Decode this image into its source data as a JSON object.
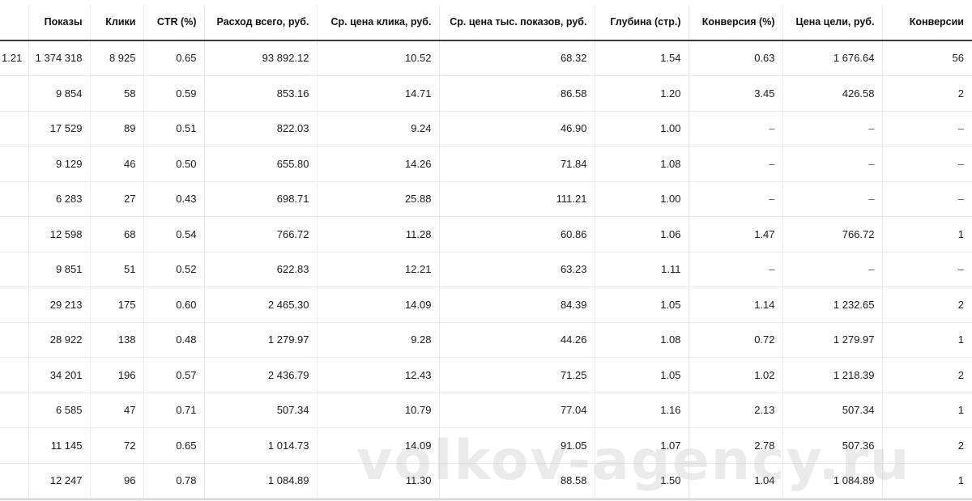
{
  "totals": [
    "1.21",
    "1 374 318",
    "8 925",
    "0.65",
    "93 892.12",
    "10.52",
    "68.32",
    "1.54",
    "0.63",
    "1 676.64",
    "56"
  ],
  "columns": [
    "",
    "Показы",
    "Клики",
    "CTR (%)",
    "Расход всего, руб.",
    "Ср. цена клика, руб.",
    "Ср. цена тыс. показов, руб.",
    "Глубина (стр.)",
    "Конверсия (%)",
    "Цена цели, руб.",
    "Конверсии"
  ],
  "rows": [
    [
      "",
      "9 854",
      "58",
      "0.59",
      "853.16",
      "14.71",
      "86.58",
      "1.20",
      "3.45",
      "426.58",
      "2"
    ],
    [
      "",
      "17 529",
      "89",
      "0.51",
      "822.03",
      "9.24",
      "46.90",
      "1.00",
      "–",
      "–",
      "–"
    ],
    [
      "",
      "9 129",
      "46",
      "0.50",
      "655.80",
      "14.26",
      "71.84",
      "1.08",
      "–",
      "–",
      "–"
    ],
    [
      "",
      "6 283",
      "27",
      "0.43",
      "698.71",
      "25.88",
      "111.21",
      "1.00",
      "–",
      "–",
      "–"
    ],
    [
      "",
      "12 598",
      "68",
      "0.54",
      "766.72",
      "11.28",
      "60.86",
      "1.06",
      "1.47",
      "766.72",
      "1"
    ],
    [
      "",
      "9 851",
      "51",
      "0.52",
      "622.83",
      "12.21",
      "63.23",
      "1.11",
      "–",
      "–",
      "–"
    ],
    [
      "",
      "29 213",
      "175",
      "0.60",
      "2 465.30",
      "14.09",
      "84.39",
      "1.05",
      "1.14",
      "1 232.65",
      "2"
    ],
    [
      "",
      "28 922",
      "138",
      "0.48",
      "1 279.97",
      "9.28",
      "44.26",
      "1.08",
      "0.72",
      "1 279.97",
      "1"
    ],
    [
      "",
      "34 201",
      "196",
      "0.57",
      "2 436.79",
      "12.43",
      "71.25",
      "1.05",
      "1.02",
      "1 218.39",
      "2"
    ],
    [
      "",
      "6 585",
      "47",
      "0.71",
      "507.34",
      "10.79",
      "77.04",
      "1.16",
      "2.13",
      "507.34",
      "1"
    ],
    [
      "",
      "11 145",
      "72",
      "0.65",
      "1 014.73",
      "14.09",
      "91.05",
      "1.07",
      "2.78",
      "507.36",
      "2"
    ],
    [
      "",
      "12 247",
      "96",
      "0.78",
      "1 084.89",
      "11.30",
      "88.58",
      "1.50",
      "1.04",
      "1 084.89",
      "1"
    ]
  ],
  "watermark": "volkov-agency.ru"
}
